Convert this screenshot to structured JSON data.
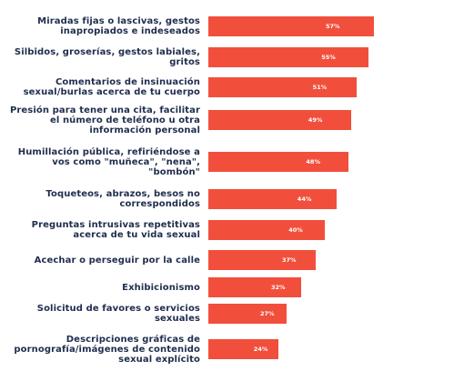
{
  "chart_data": {
    "type": "bar",
    "orientation": "horizontal",
    "categories": [
      "Miradas fijas o lascivas, gestos inapropiados e indeseados",
      "Silbidos, groserías, gestos labiales, gritos",
      "Comentarios de insinuación sexual/burlas acerca de tu cuerpo",
      "Presión para tener una cita, facilitar el número de teléfono u otra información personal",
      "Humillación pública, refiriéndose a vos como \"muñeca\", \"nena\", \"bombón\"",
      "Toqueteos, abrazos, besos no correspondidos",
      "Preguntas intrusivas repetitivas acerca de tu vida sexual",
      "Acechar o perseguir por la calle",
      "Exhibicionismo",
      "Solicitud de favores o servicios sexuales",
      "Descripciones gráficas de pornografía/imágenes de contenido sexual explícito"
    ],
    "values": [
      57,
      55,
      51,
      49,
      48,
      44,
      40,
      37,
      32,
      27,
      24
    ],
    "value_labels": [
      "57%",
      "55%",
      "51%",
      "49%",
      "48%",
      "44%",
      "40%",
      "37%",
      "32%",
      "27%",
      "24%"
    ],
    "xlim": [
      0,
      60
    ],
    "grid": false,
    "bar_color": "#f14f3c",
    "label_color": "#1f2d4e",
    "value_label_color": "#ffffff"
  }
}
